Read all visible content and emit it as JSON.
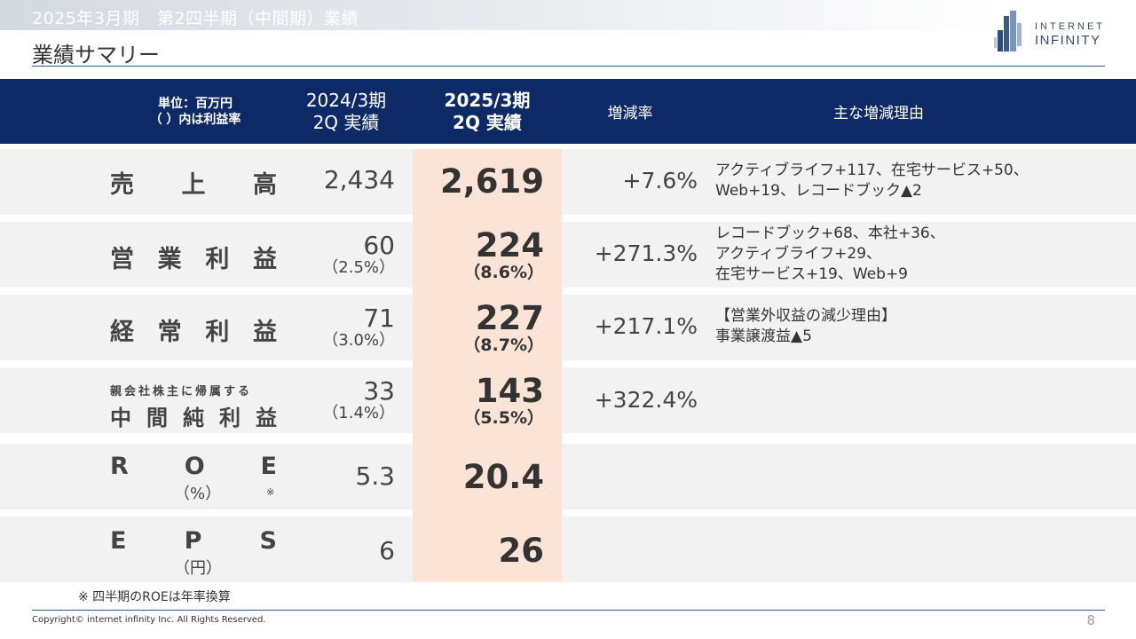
{
  "header": {
    "super_title": "2025年3月期　第2四半期（中間期）業績",
    "page_title": "業績サマリー",
    "logo_line1": "INTERNET",
    "logo_line2": "INFINITY"
  },
  "table": {
    "columns": {
      "unit_line1": "単位：百万円",
      "unit_line2": "（ ）内は利益率",
      "prev_line1": "2024/3期",
      "prev_line2": "2Q 実績",
      "cur_line1": "2025/3期",
      "cur_line2": "2Q 実績",
      "rate": "増減率",
      "reason": "主な増減理由"
    },
    "rows": [
      {
        "label_chars": [
          "売",
          "上",
          "高"
        ],
        "prev_value": "2,434",
        "cur_value": "2,619",
        "rate": "+7.6%",
        "reason_lines": [
          "アクティブライフ+117、在宅サービス+50、",
          "Web+19、レコードブック▲2"
        ]
      },
      {
        "label_chars": [
          "営",
          "業",
          "利",
          "益"
        ],
        "prev_value": "60",
        "prev_pct": "（2.5%）",
        "cur_value": "224",
        "cur_pct": "（8.6%）",
        "rate": "+271.3%",
        "reason_lines": [
          "レコードブック+68、本社+36、",
          "アクティブライフ+29、",
          "在宅サービス+19、Web+9"
        ]
      },
      {
        "label_chars": [
          "経",
          "常",
          "利",
          "益"
        ],
        "prev_value": "71",
        "prev_pct": "（3.0%）",
        "cur_value": "227",
        "cur_pct": "（8.7%）",
        "rate": "+217.1%",
        "reason_lines": [
          "【営業外収益の減少理由】",
          "事業譲渡益▲5"
        ]
      },
      {
        "label_small": "親会社株主に帰属する",
        "label_chars": [
          "中",
          "間",
          "純",
          "利",
          "益"
        ],
        "prev_value": "33",
        "prev_pct": "（1.4%）",
        "cur_value": "143",
        "cur_pct": "（5.5%）",
        "rate": "+322.4%"
      },
      {
        "label_chars": [
          "R",
          "O",
          "E"
        ],
        "label_sub": "（%）",
        "label_note": "※",
        "prev_value": "5.3",
        "cur_value": "20.4"
      },
      {
        "label_chars": [
          "E",
          "P",
          "S"
        ],
        "label_sub": "（円）",
        "prev_value": "6",
        "cur_value": "26"
      }
    ]
  },
  "footer": {
    "footnote": "※ 四半期のROEは年率換算",
    "copyright": "Copyright© internet infinity Inc. All Rights Reserved.",
    "page_number": "8"
  },
  "colors": {
    "header_band": "#0d2a66",
    "highlight_column": "#fbe4d5",
    "row_background": "#f2f2f2",
    "rule": "#2f5b8a"
  }
}
